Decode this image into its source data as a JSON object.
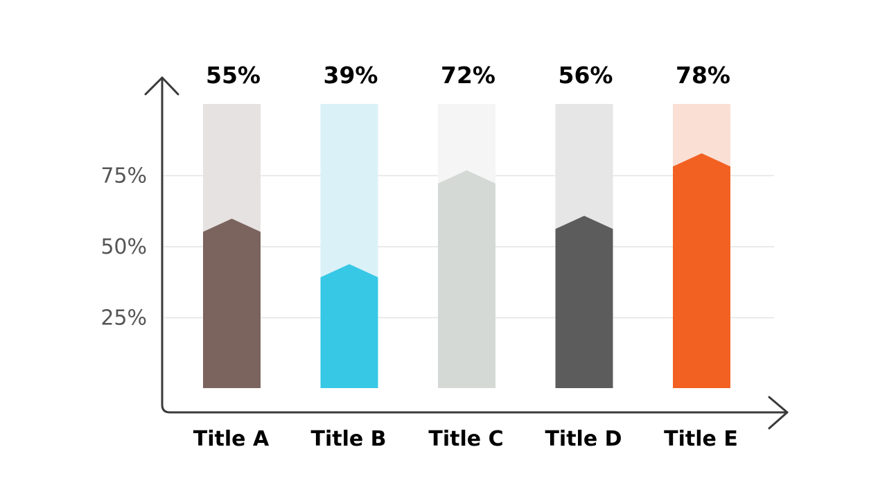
{
  "chart_data": {
    "type": "bar",
    "categories": [
      "Title A",
      "Title B",
      "Title C",
      "Title D",
      "Title E"
    ],
    "values": [
      55,
      39,
      72,
      56,
      78
    ],
    "value_labels": [
      "55%",
      "39%",
      "72%",
      "56%",
      "78%"
    ],
    "yticks": [
      25,
      50,
      75
    ],
    "ytick_labels": [
      "25%",
      "50%",
      "75%"
    ],
    "ylim": [
      0,
      100
    ],
    "grid": true,
    "colors": {
      "fill": [
        "#7b645e",
        "#37c8e6",
        "#d4d9d5",
        "#5c5c5c",
        "#f26122"
      ],
      "track": [
        "#e6e2e1",
        "#daf1f7",
        "#f4f5f4",
        "#e6e6e6",
        "#fadfd4"
      ]
    }
  }
}
